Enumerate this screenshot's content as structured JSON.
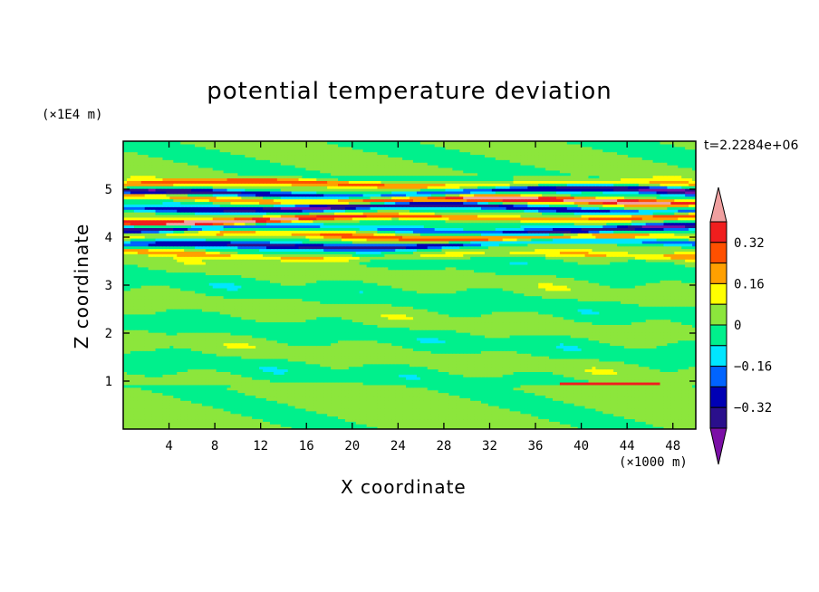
{
  "chart_data": {
    "type": "heatmap",
    "title": "potential temperature deviation",
    "xlabel": "X coordinate",
    "ylabel": "Z coordinate",
    "x_unit": "(×1000 m)",
    "y_unit": "(×1E4 m)",
    "time_label": "t=2.2284e+06",
    "xlim": [
      0,
      50
    ],
    "ylim": [
      0,
      6
    ],
    "x_ticks": [
      4,
      8,
      12,
      16,
      20,
      24,
      28,
      32,
      36,
      40,
      44,
      48
    ],
    "y_ticks": [
      1,
      2,
      3,
      4,
      5
    ],
    "x_tick_labels": [
      "4",
      "8",
      "12",
      "16",
      "20",
      "24",
      "28",
      "32",
      "36",
      "40",
      "44",
      "48"
    ],
    "y_tick_labels": [
      "1",
      "2",
      "3",
      "4",
      "5"
    ],
    "contour_levels": [
      -0.48,
      -0.4,
      -0.32,
      -0.24,
      -0.16,
      -0.08,
      0,
      0.08,
      0.16,
      0.24,
      0.32,
      0.4
    ],
    "colorbar_labels": [
      {
        "value": 0.32,
        "text": "0.32"
      },
      {
        "value": 0.16,
        "text": "0.16"
      },
      {
        "value": 0,
        "text": "0"
      },
      {
        "value": -0.16,
        "text": "−0.16"
      },
      {
        "value": -0.32,
        "text": "−0.32"
      }
    ],
    "colors": [
      "#7b0fa6",
      "#2a0f8c",
      "#0000b4",
      "#0064ff",
      "#00e6ff",
      "#00f08c",
      "#8ce63c",
      "#ffff00",
      "#ffa000",
      "#ff5000",
      "#f01e1e",
      "#f0a0a0"
    ],
    "description_bands": [
      {
        "z": 5.1,
        "value": 0.28
      },
      {
        "z": 4.95,
        "value": -0.45
      },
      {
        "z": 4.8,
        "value": 0.45
      },
      {
        "z": 4.6,
        "value": -0.45
      },
      {
        "z": 4.4,
        "value": 0.45
      },
      {
        "z": 4.2,
        "value": -0.4
      },
      {
        "z": 4.0,
        "value": 0.3
      },
      {
        "z": 3.85,
        "value": -0.35
      },
      {
        "z": 3.65,
        "value": 0.2
      }
    ]
  }
}
